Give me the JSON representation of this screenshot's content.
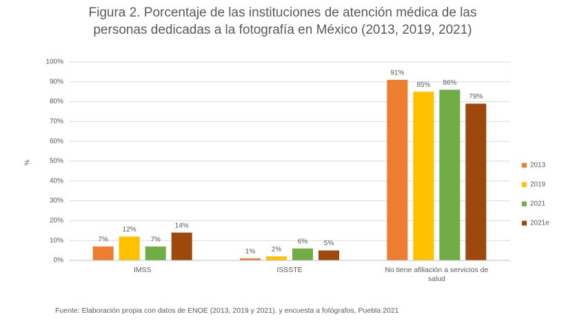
{
  "chart_data": {
    "type": "bar",
    "title": "Figura 2. Porcentaje de las instituciones de atención médica de las personas dedicadas a la fotografía en México (2013, 2019, 2021)",
    "y_label": "%",
    "categories": [
      "IMSS",
      "ISSSTE",
      "No tiene afiliación a servicios de salud"
    ],
    "series": [
      {
        "name": "2013",
        "color": "#ED7D31",
        "values": [
          7,
          1,
          91
        ],
        "value_labels": [
          "7%",
          "1%",
          "91%"
        ]
      },
      {
        "name": "2019",
        "color": "#FFC000",
        "values": [
          12,
          2,
          85
        ],
        "value_labels": [
          "12%",
          "2%",
          "85%"
        ]
      },
      {
        "name": "2021",
        "color": "#70AD47",
        "values": [
          7,
          6,
          86
        ],
        "value_labels": [
          "7%",
          "6%",
          "86%"
        ]
      },
      {
        "name": "2021e",
        "color": "#9E480E",
        "values": [
          14,
          5,
          79
        ],
        "value_labels": [
          "14%",
          "5%",
          "79%"
        ]
      }
    ],
    "ylim": [
      0,
      100
    ],
    "yticks": [
      {
        "value": 0,
        "label": "0%"
      },
      {
        "value": 10,
        "label": "10%"
      },
      {
        "value": 20,
        "label": "20%"
      },
      {
        "value": 30,
        "label": "30%"
      },
      {
        "value": 40,
        "label": "40%"
      },
      {
        "value": 50,
        "label": "50%"
      },
      {
        "value": 60,
        "label": "60%"
      },
      {
        "value": 70,
        "label": "70%"
      },
      {
        "value": 80,
        "label": "80%"
      },
      {
        "value": 90,
        "label": "90%"
      },
      {
        "value": 100,
        "label": "100%"
      }
    ],
    "grid": true,
    "legend": "right",
    "source": "Fuente: Elaboración propia con datos de ENOE (2013, 2019 y 2021). y encuesta a fotógrafos, Puebla 2021"
  }
}
